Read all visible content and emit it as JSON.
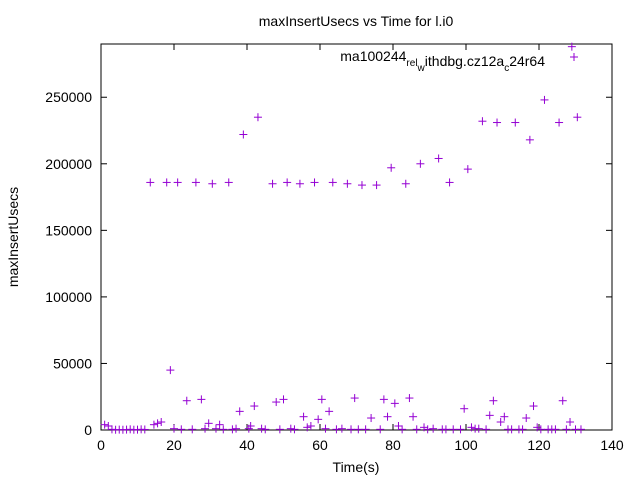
{
  "chart_data": {
    "type": "scatter",
    "title": "maxInsertUsecs vs Time for l.i0",
    "xlabel": "Time(s)",
    "ylabel": "maxInsertUsecs",
    "xlim": [
      0,
      140
    ],
    "ylim": [
      0,
      290000
    ],
    "x_ticks": [
      0,
      20,
      40,
      60,
      80,
      100,
      120,
      140
    ],
    "y_ticks": [
      0,
      50000,
      100000,
      150000,
      200000,
      250000
    ],
    "legend": "top-right",
    "marker": "plus",
    "color": "#9400d3",
    "series": [
      {
        "name": "ma100244_rel_withdbg.cz12a_c24r64",
        "name_main": "ma100244",
        "name_sub1": "rel",
        "name_mid1": "",
        "name_sub2": "w",
        "name_mid2": "ithdbg.cz12a",
        "name_sub3": "c",
        "name_tail": "24r64",
        "points": [
          [
            1,
            4000
          ],
          [
            2,
            3000
          ],
          [
            3,
            500
          ],
          [
            4,
            200
          ],
          [
            5,
            300
          ],
          [
            6,
            200
          ],
          [
            7,
            300
          ],
          [
            8,
            500
          ],
          [
            9,
            200
          ],
          [
            10,
            300
          ],
          [
            11,
            500
          ],
          [
            12,
            400
          ],
          [
            13.5,
            186000
          ],
          [
            14.5,
            4000
          ],
          [
            15.5,
            5000
          ],
          [
            16.5,
            6000
          ],
          [
            18,
            186000
          ],
          [
            19,
            45000
          ],
          [
            20,
            1000
          ],
          [
            21,
            186000
          ],
          [
            22,
            500
          ],
          [
            23.5,
            22000
          ],
          [
            25,
            500
          ],
          [
            26,
            186000
          ],
          [
            27.5,
            23000
          ],
          [
            28.5,
            1000
          ],
          [
            29.5,
            5000
          ],
          [
            30.5,
            185000
          ],
          [
            31.5,
            1000
          ],
          [
            32.5,
            4000
          ],
          [
            33.5,
            500
          ],
          [
            35,
            186000
          ],
          [
            36,
            500
          ],
          [
            37,
            1000
          ],
          [
            38,
            14000
          ],
          [
            39,
            222000
          ],
          [
            40.5,
            1000
          ],
          [
            41,
            3000
          ],
          [
            42,
            18000
          ],
          [
            43,
            235000
          ],
          [
            44,
            1000
          ],
          [
            45,
            500
          ],
          [
            47,
            185000
          ],
          [
            48,
            21000
          ],
          [
            49,
            500
          ],
          [
            50,
            23000
          ],
          [
            51,
            186000
          ],
          [
            52,
            1000
          ],
          [
            53,
            500
          ],
          [
            54.5,
            185000
          ],
          [
            55.5,
            10000
          ],
          [
            56.5,
            2000
          ],
          [
            57.5,
            3000
          ],
          [
            58.5,
            186000
          ],
          [
            59.5,
            8000
          ],
          [
            60.5,
            23000
          ],
          [
            61.5,
            1000
          ],
          [
            62.5,
            14000
          ],
          [
            63.5,
            186000
          ],
          [
            64.5,
            500
          ],
          [
            66,
            1000
          ],
          [
            67.5,
            185000
          ],
          [
            68.5,
            500
          ],
          [
            69.5,
            24000
          ],
          [
            70.5,
            500
          ],
          [
            71.5,
            184000
          ],
          [
            72.5,
            500
          ],
          [
            74,
            9000
          ],
          [
            75.5,
            184000
          ],
          [
            76.5,
            500
          ],
          [
            77.5,
            23000
          ],
          [
            78.5,
            10000
          ],
          [
            79.5,
            197000
          ],
          [
            80.5,
            20000
          ],
          [
            81.5,
            3000
          ],
          [
            82.5,
            500
          ],
          [
            83.5,
            185000
          ],
          [
            84.5,
            24000
          ],
          [
            85.5,
            10000
          ],
          [
            86.5,
            500
          ],
          [
            87.5,
            200000
          ],
          [
            88.5,
            2000
          ],
          [
            89.5,
            500
          ],
          [
            91,
            1000
          ],
          [
            92.5,
            204000
          ],
          [
            93.5,
            500
          ],
          [
            94.5,
            500
          ],
          [
            95.5,
            186000
          ],
          [
            96.5,
            500
          ],
          [
            98.5,
            500
          ],
          [
            99.5,
            16000
          ],
          [
            100.5,
            196000
          ],
          [
            101.5,
            2000
          ],
          [
            102.5,
            1000
          ],
          [
            103.5,
            1000
          ],
          [
            104.5,
            232000
          ],
          [
            105.5,
            500
          ],
          [
            106.5,
            11000
          ],
          [
            107.5,
            22000
          ],
          [
            108.5,
            231000
          ],
          [
            109.5,
            6000
          ],
          [
            110.5,
            10000
          ],
          [
            111.5,
            500
          ],
          [
            112.5,
            500
          ],
          [
            113.5,
            231000
          ],
          [
            114.5,
            500
          ],
          [
            115.5,
            500
          ],
          [
            116.5,
            9000
          ],
          [
            117.5,
            218000
          ],
          [
            118.5,
            18000
          ],
          [
            119.5,
            2000
          ],
          [
            120.5,
            500
          ],
          [
            121.5,
            248000
          ],
          [
            122.5,
            500
          ],
          [
            123.5,
            500
          ],
          [
            124.5,
            500
          ],
          [
            125.5,
            231000
          ],
          [
            126.5,
            22000
          ],
          [
            127.5,
            500
          ],
          [
            128.5,
            6000
          ],
          [
            129,
            288000
          ],
          [
            130,
            500
          ],
          [
            130.5,
            235000
          ],
          [
            131.5,
            500
          ]
        ]
      }
    ]
  }
}
